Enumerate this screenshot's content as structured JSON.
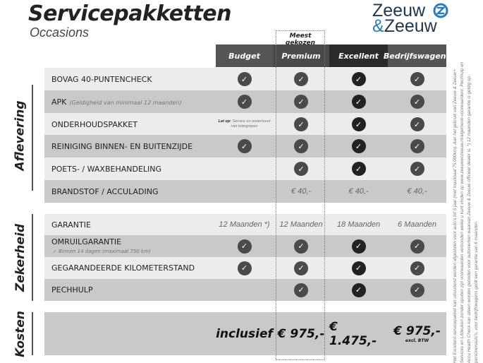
{
  "header": {
    "title": "Servicepakketten",
    "subtitle": "Occasions",
    "logo_line1": "Zeeuw",
    "logo_line2_amp": "&",
    "logo_line2": "Zeeuw",
    "badge": "Meest gekozen"
  },
  "colors": {
    "logo_blue": "#2a7db8",
    "logo_navy": "#1f3550",
    "highlight_border": "#3da23d"
  },
  "columns": [
    "Budget",
    "Premium",
    "Excellent",
    "Bedrijfswagens"
  ],
  "sections": {
    "aflevering": "Aflevering",
    "zekerheid": "Zekerheid",
    "kosten": "Kosten"
  },
  "aflevering": [
    {
      "label": "BOVAG 40-PUNTENCHECK",
      "note": "",
      "cells": [
        "check",
        "check",
        "check",
        "check"
      ]
    },
    {
      "label": "APK",
      "note": "(Geldigheid van minimaal 12 maanden)",
      "cells": [
        "check",
        "check",
        "check",
        "check"
      ]
    },
    {
      "label": "ONDERHOUDSPAKKET",
      "note": "",
      "cells": [
        "note",
        "check",
        "check",
        "check"
      ]
    },
    {
      "label": "REINIGING BINNEN- EN BUITENZIJDE",
      "note": "",
      "cells": [
        "check",
        "check",
        "check",
        "check"
      ]
    },
    {
      "label": "POETS- / WAXBEHANDELING",
      "note": "",
      "cells": [
        "",
        "check",
        "check",
        "check"
      ]
    },
    {
      "label": "BRANDSTOF / ACCULADING",
      "note": "",
      "cells": [
        "",
        "€ 40,-",
        "€ 40,-",
        "€ 40,-"
      ]
    }
  ],
  "budget_note": {
    "bold": "Let op:",
    "text": "Service en onderhoud niet inbegrepen"
  },
  "zekerheid": [
    {
      "label": "GARANTIE",
      "sub": "",
      "cells": [
        "12 Maanden *)",
        "12 Maanden",
        "18 Maanden",
        "6 Maanden"
      ]
    },
    {
      "label": "OMRUILGARANTIE",
      "sub": "✓  Binnen 14 dagen (maximaal 750 km)",
      "cells": [
        "check",
        "check",
        "check",
        "check"
      ]
    },
    {
      "label": "GEGARANDEERDE KILOMETERSTAND",
      "sub": "",
      "cells": [
        "check",
        "check",
        "check",
        "check"
      ]
    },
    {
      "label": "PECHHULP",
      "sub": "",
      "cells": [
        "",
        "check",
        "check",
        "check"
      ]
    }
  ],
  "kosten": {
    "cells": [
      "inclusief",
      "€ 975,-",
      "€ 1.475,-",
      "€ 975,-"
    ],
    "excl": "excl. BTW"
  },
  "footnote": "Het Excellent-servicepakket kan uitsluitend worden afgesloten voor auto's tot 5 jaar (met maximaal 75.000km). Aan het gebruik van Zeeuw & Zeeuw+ Services en Litdeuken zonder spuiten zijn voorwaarden verbonden welke u kunt vinden op www.zeeuwenzeeuw.nl/algemene-voorwaarden/. Pechhulp en Accu Health Check kan alleen worden geboden voor automerken waarvan Zeeuw & Zeeuw officieel dealer is. *) 12 maanden garantie is geldig op personenauto's, voor bedrijfswagens geldt een garantie van 6 maanden."
}
